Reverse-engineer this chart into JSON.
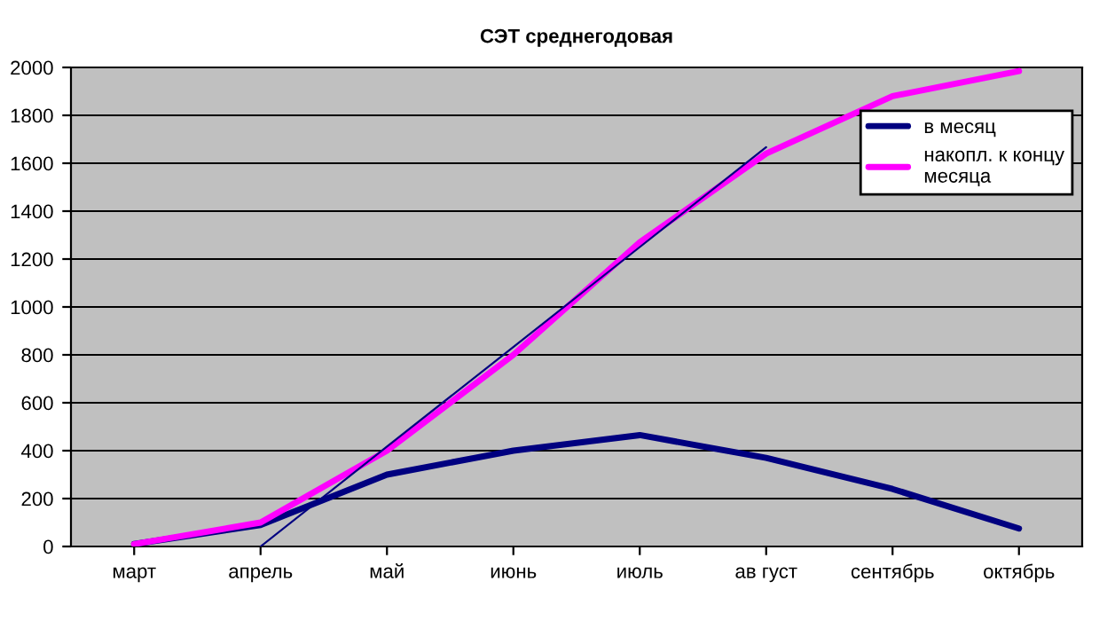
{
  "chart_data": {
    "type": "line",
    "title": "СЭТ среднегодовая",
    "categories": [
      "март",
      "апрель",
      "май",
      "июнь",
      "июль",
      "ав густ",
      "сентябрь",
      "октябрь"
    ],
    "series": [
      {
        "name": "в месяц",
        "color": "#000080",
        "values": [
          10,
          90,
          300,
          400,
          465,
          370,
          240,
          75
        ]
      },
      {
        "name": "накопл. к концу\nмесяца",
        "color": "#ff00ff",
        "values": [
          10,
          100,
          400,
          800,
          1270,
          1640,
          1880,
          1985
        ]
      },
      {
        "type": "line",
        "color": "#000080",
        "values": [
          null,
          0,
          417,
          833,
          1250,
          1667,
          null,
          null
        ]
      }
    ],
    "ylim": [
      0,
      2000
    ],
    "yticks": [
      0,
      200,
      400,
      600,
      800,
      1000,
      1200,
      1400,
      1600,
      1800,
      2000
    ],
    "grid": "y",
    "legend": "top right"
  }
}
